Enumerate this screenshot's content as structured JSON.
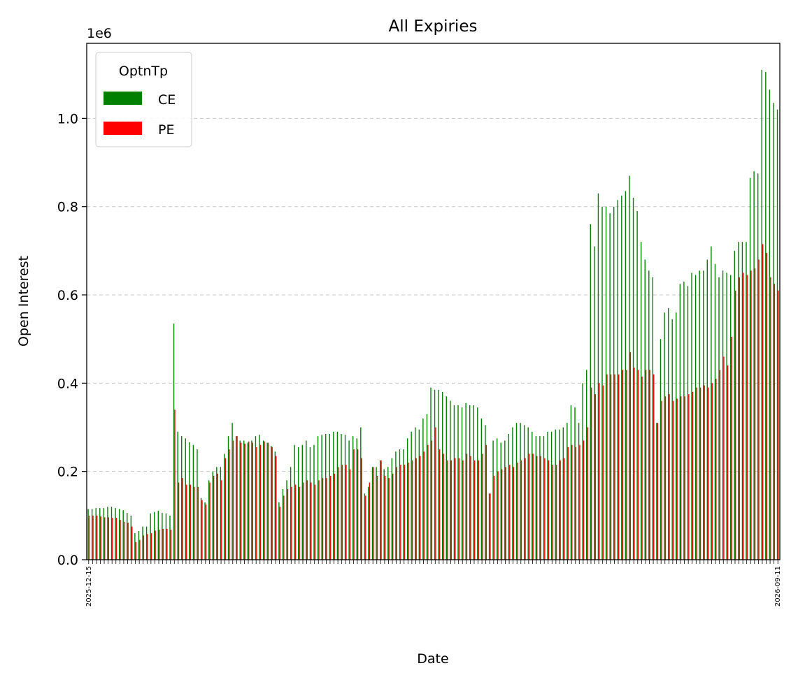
{
  "chart_data": {
    "type": "bar",
    "title": "All Expiries",
    "xlabel": "Date",
    "ylabel": "Open Interest",
    "y_offset_label": "1e6",
    "ylim": [
      0,
      1.17
    ],
    "yticks": [
      "0.0",
      "0.2",
      "0.4",
      "0.6",
      "0.8",
      "1.0"
    ],
    "grid": "y-dashed",
    "legend": {
      "title": "OptnTp",
      "placement": "top-left",
      "entries": [
        "CE",
        "PE"
      ]
    },
    "first_category": "2025-12-15",
    "last_category": "2026-09-11",
    "series": [
      {
        "name": "CE",
        "color": "#008000",
        "values": [
          0.115,
          0.115,
          0.117,
          0.117,
          0.117,
          0.12,
          0.12,
          0.117,
          0.115,
          0.112,
          0.106,
          0.1,
          0.06,
          0.065,
          0.075,
          0.075,
          0.105,
          0.108,
          0.111,
          0.106,
          0.105,
          0.1,
          0.535,
          0.29,
          0.28,
          0.275,
          0.266,
          0.26,
          0.25,
          0.14,
          0.13,
          0.18,
          0.2,
          0.21,
          0.21,
          0.24,
          0.28,
          0.31,
          0.28,
          0.27,
          0.27,
          0.265,
          0.27,
          0.28,
          0.283,
          0.27,
          0.265,
          0.258,
          0.245,
          0.13,
          0.16,
          0.18,
          0.21,
          0.26,
          0.255,
          0.26,
          0.27,
          0.255,
          0.26,
          0.28,
          0.283,
          0.285,
          0.285,
          0.29,
          0.29,
          0.285,
          0.283,
          0.27,
          0.28,
          0.275,
          0.3,
          0.15,
          0.165,
          0.21,
          0.21,
          0.225,
          0.205,
          0.21,
          0.23,
          0.245,
          0.25,
          0.25,
          0.275,
          0.29,
          0.3,
          0.295,
          0.32,
          0.33,
          0.39,
          0.385,
          0.385,
          0.38,
          0.37,
          0.36,
          0.35,
          0.35,
          0.345,
          0.355,
          0.35,
          0.35,
          0.345,
          0.32,
          0.305,
          0.15,
          0.27,
          0.275,
          0.265,
          0.27,
          0.285,
          0.3,
          0.31,
          0.31,
          0.305,
          0.3,
          0.29,
          0.28,
          0.28,
          0.28,
          0.29,
          0.29,
          0.295,
          0.295,
          0.3,
          0.31,
          0.35,
          0.345,
          0.31,
          0.4,
          0.43,
          0.76,
          0.71,
          0.83,
          0.8,
          0.8,
          0.785,
          0.8,
          0.815,
          0.825,
          0.835,
          0.87,
          0.82,
          0.79,
          0.72,
          0.68,
          0.655,
          0.64,
          0.31,
          0.5,
          0.56,
          0.57,
          0.545,
          0.56,
          0.625,
          0.63,
          0.62,
          0.65,
          0.645,
          0.655,
          0.655,
          0.68,
          0.71,
          0.67,
          0.64,
          0.655,
          0.65,
          0.645,
          0.7,
          0.72,
          0.72,
          0.72,
          0.865,
          0.88,
          0.875,
          1.11,
          1.105,
          1.065,
          1.035,
          1.02
        ]
      },
      {
        "name": "PE",
        "color": "#ff0000",
        "values": [
          0.1,
          0.1,
          0.1,
          0.098,
          0.096,
          0.096,
          0.095,
          0.095,
          0.09,
          0.086,
          0.084,
          0.075,
          0.04,
          0.045,
          0.055,
          0.058,
          0.06,
          0.066,
          0.068,
          0.07,
          0.07,
          0.068,
          0.34,
          0.175,
          0.185,
          0.17,
          0.17,
          0.165,
          0.165,
          0.135,
          0.125,
          0.175,
          0.19,
          0.195,
          0.18,
          0.23,
          0.25,
          0.27,
          0.28,
          0.265,
          0.263,
          0.268,
          0.265,
          0.255,
          0.26,
          0.268,
          0.265,
          0.255,
          0.235,
          0.12,
          0.145,
          0.16,
          0.165,
          0.17,
          0.165,
          0.175,
          0.18,
          0.175,
          0.17,
          0.18,
          0.185,
          0.185,
          0.19,
          0.195,
          0.21,
          0.215,
          0.215,
          0.205,
          0.25,
          0.25,
          0.23,
          0.145,
          0.175,
          0.21,
          0.19,
          0.225,
          0.19,
          0.185,
          0.195,
          0.21,
          0.215,
          0.215,
          0.22,
          0.225,
          0.23,
          0.235,
          0.245,
          0.26,
          0.27,
          0.3,
          0.25,
          0.24,
          0.225,
          0.225,
          0.23,
          0.23,
          0.225,
          0.24,
          0.235,
          0.225,
          0.225,
          0.24,
          0.26,
          0.15,
          0.19,
          0.2,
          0.205,
          0.21,
          0.215,
          0.21,
          0.22,
          0.225,
          0.23,
          0.24,
          0.24,
          0.235,
          0.235,
          0.23,
          0.225,
          0.215,
          0.215,
          0.225,
          0.23,
          0.255,
          0.26,
          0.255,
          0.26,
          0.27,
          0.3,
          0.39,
          0.375,
          0.4,
          0.395,
          0.42,
          0.42,
          0.42,
          0.42,
          0.43,
          0.43,
          0.47,
          0.435,
          0.43,
          0.415,
          0.43,
          0.43,
          0.42,
          0.31,
          0.36,
          0.37,
          0.375,
          0.36,
          0.365,
          0.37,
          0.37,
          0.375,
          0.38,
          0.39,
          0.39,
          0.395,
          0.39,
          0.4,
          0.41,
          0.43,
          0.46,
          0.44,
          0.505,
          0.61,
          0.64,
          0.65,
          0.645,
          0.655,
          0.66,
          0.68,
          0.715,
          0.695,
          0.64,
          0.625,
          0.61
        ]
      }
    ]
  }
}
